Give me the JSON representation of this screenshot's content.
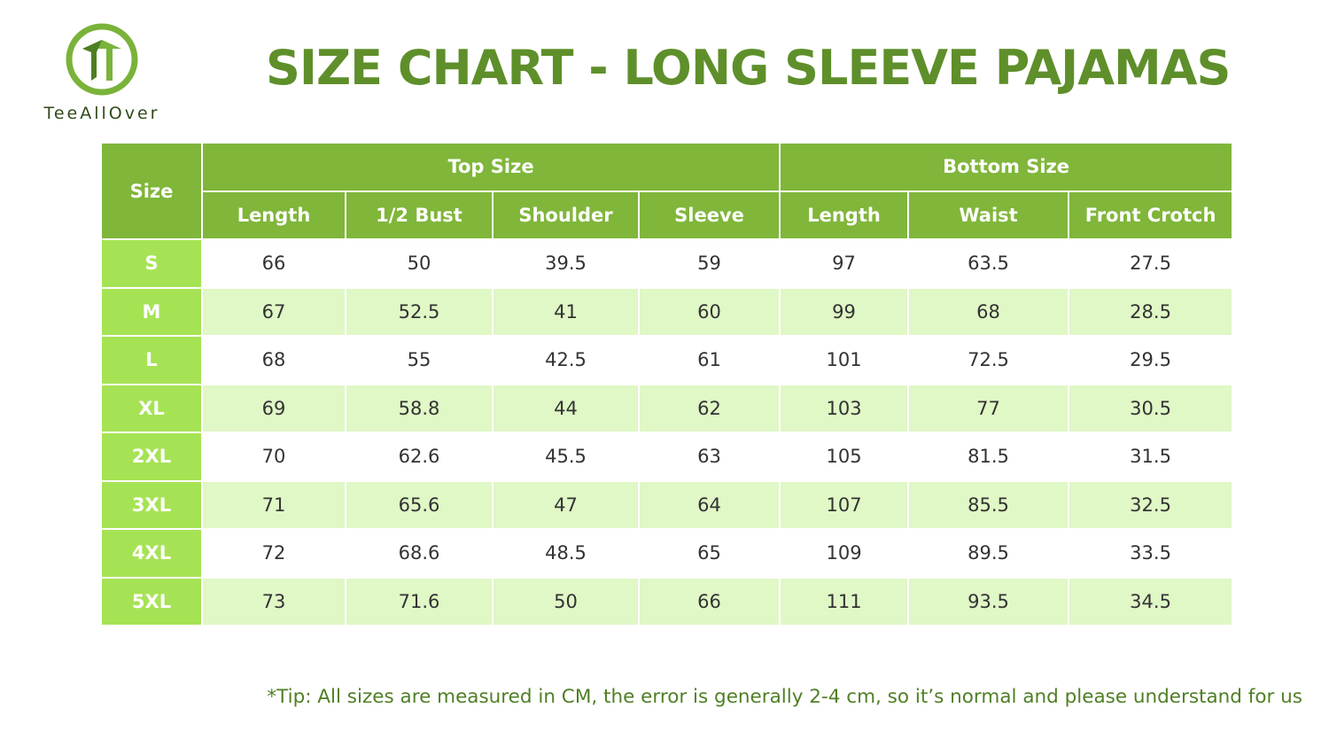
{
  "brand": {
    "name": "TeeAllOver",
    "accent": "#80b63a",
    "title_color": "#5e8f2a",
    "row_header_color": "#a6e354",
    "stripe_color": "#e0f7c6"
  },
  "title": "SIZE CHART - LONG SLEEVE PAJAMAS",
  "table": {
    "size_header": "Size",
    "groups": [
      "Top Size",
      "Bottom Size"
    ],
    "columns": [
      "Length",
      "1/2 Bust",
      "Shoulder",
      "Sleeve",
      "Length",
      "Waist",
      "Front Crotch"
    ],
    "rows": [
      {
        "size": "S",
        "values": [
          "66",
          "50",
          "39.5",
          "59",
          "97",
          "63.5",
          "27.5"
        ]
      },
      {
        "size": "M",
        "values": [
          "67",
          "52.5",
          "41",
          "60",
          "99",
          "68",
          "28.5"
        ]
      },
      {
        "size": "L",
        "values": [
          "68",
          "55",
          "42.5",
          "61",
          "101",
          "72.5",
          "29.5"
        ]
      },
      {
        "size": "XL",
        "values": [
          "69",
          "58.8",
          "44",
          "62",
          "103",
          "77",
          "30.5"
        ]
      },
      {
        "size": "2XL",
        "values": [
          "70",
          "62.6",
          "45.5",
          "63",
          "105",
          "81.5",
          "31.5"
        ]
      },
      {
        "size": "3XL",
        "values": [
          "71",
          "65.6",
          "47",
          "64",
          "107",
          "85.5",
          "32.5"
        ]
      },
      {
        "size": "4XL",
        "values": [
          "72",
          "68.6",
          "48.5",
          "65",
          "109",
          "89.5",
          "33.5"
        ]
      },
      {
        "size": "5XL",
        "values": [
          "73",
          "71.6",
          "50",
          "66",
          "111",
          "93.5",
          "34.5"
        ]
      }
    ]
  },
  "tip": "*Tip: All sizes are measured in CM, the error is generally 2-4 cm, so it’s normal and please understand for us",
  "icons": {
    "logo": "tee-circle-logo-icon"
  }
}
